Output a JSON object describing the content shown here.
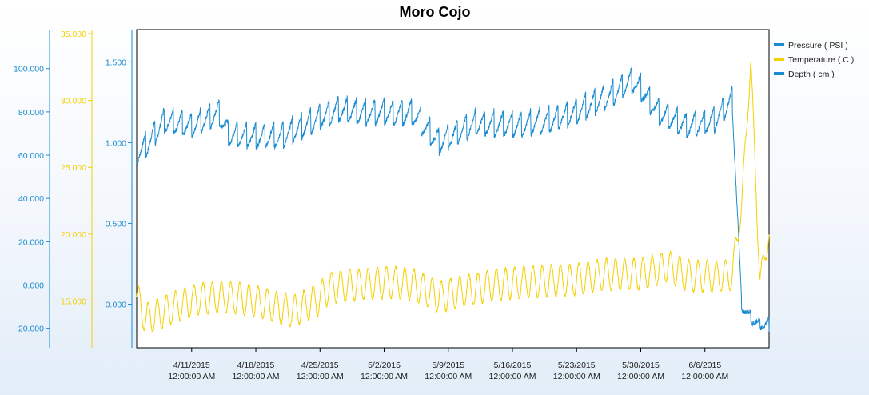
{
  "chart_data": {
    "type": "line",
    "title": "Moro Cojo",
    "x_axis": {
      "type": "date",
      "range": [
        "2015-04-05",
        "2015-06-13"
      ],
      "tick_labels": [
        {
          "date": "2015-04-11",
          "line1": "4/11/2015",
          "line2": "12:00:00 AM"
        },
        {
          "date": "2015-04-18",
          "line1": "4/18/2015",
          "line2": "12:00:00 AM"
        },
        {
          "date": "2015-04-25",
          "line1": "4/25/2015",
          "line2": "12:00:00 AM"
        },
        {
          "date": "2015-05-02",
          "line1": "5/2/2015",
          "line2": "12:00:00 AM"
        },
        {
          "date": "2015-05-09",
          "line1": "5/9/2015",
          "line2": "12:00:00 AM"
        },
        {
          "date": "2015-05-16",
          "line1": "5/16/2015",
          "line2": "12:00:00 AM"
        },
        {
          "date": "2015-05-23",
          "line1": "5/23/2015",
          "line2": "12:00:00 AM"
        },
        {
          "date": "2015-05-30",
          "line1": "5/30/2015",
          "line2": "12:00:00 AM"
        },
        {
          "date": "2015-06-06",
          "line1": "6/6/2015",
          "line2": "12:00:00 AM"
        }
      ]
    },
    "y_axes": [
      {
        "series": "Depth ( cm )",
        "color": "#1a8bd0",
        "ylim": [
          -29,
          118
        ],
        "ticks": [
          "-20.000",
          "0.000",
          "20.000",
          "40.000",
          "60.000",
          "80.000",
          "100.000"
        ],
        "tick_values": [
          -20,
          0,
          20,
          40,
          60,
          80,
          100
        ]
      },
      {
        "series": "Temperature ( C )",
        "color": "#f5d000",
        "ylim": [
          11.5,
          35.3
        ],
        "ticks": [
          "15.000",
          "20.000",
          "25.000",
          "30.000",
          "35.000"
        ],
        "tick_values": [
          15,
          20,
          25,
          30,
          35
        ]
      },
      {
        "series": "Pressure ( PSI )",
        "color": "#1a8bd0",
        "ylim": [
          -0.27,
          1.7
        ],
        "ticks": [
          "0.000",
          "0.500",
          "1.000",
          "1.500"
        ],
        "tick_values": [
          0,
          0.5,
          1,
          1.5
        ]
      }
    ],
    "series": [
      {
        "name": "Pressure ( PSI )",
        "color": "#1a8bd0",
        "axis": "Pressure ( PSI )",
        "points": [
          [
            "2015-04-05",
            0.96
          ],
          [
            "2015-04-06",
            1.0
          ],
          [
            "2015-04-08",
            1.15
          ],
          [
            "2015-04-11",
            1.12
          ],
          [
            "2015-04-14",
            1.2
          ],
          [
            "2015-04-15",
            1.07
          ],
          [
            "2015-04-18",
            1.05
          ],
          [
            "2015-04-21",
            1.06
          ],
          [
            "2015-04-25",
            1.17
          ],
          [
            "2015-04-27",
            1.22
          ],
          [
            "2015-04-30",
            1.2
          ],
          [
            "2015-05-02",
            1.2
          ],
          [
            "2015-05-05",
            1.2
          ],
          [
            "2015-05-08",
            1.02
          ],
          [
            "2015-05-09",
            1.05
          ],
          [
            "2015-05-12",
            1.14
          ],
          [
            "2015-05-16",
            1.12
          ],
          [
            "2015-05-20",
            1.15
          ],
          [
            "2015-05-23",
            1.21
          ],
          [
            "2015-05-27",
            1.32
          ],
          [
            "2015-05-29",
            1.4
          ],
          [
            "2015-05-30",
            1.35
          ],
          [
            "2015-06-01",
            1.2
          ],
          [
            "2015-06-04",
            1.12
          ],
          [
            "2015-06-07",
            1.15
          ],
          [
            "2015-06-09",
            1.28
          ],
          [
            "2015-06-10",
            0.0
          ],
          [
            "2015-06-11",
            -0.08
          ],
          [
            "2015-06-12",
            -0.12
          ],
          [
            "2015-06-13",
            -0.12
          ]
        ]
      },
      {
        "name": "Temperature ( C )",
        "color": "#f5d000",
        "axis": "Temperature ( C )",
        "points": [
          [
            "2015-04-05",
            15.3
          ],
          [
            "2015-04-06",
            13.6
          ],
          [
            "2015-04-09",
            14.5
          ],
          [
            "2015-04-12",
            15.2
          ],
          [
            "2015-04-15",
            15.3
          ],
          [
            "2015-04-18",
            15.0
          ],
          [
            "2015-04-22",
            14.2
          ],
          [
            "2015-04-25",
            15.2
          ],
          [
            "2015-04-26",
            16.0
          ],
          [
            "2015-04-29",
            16.2
          ],
          [
            "2015-05-02",
            16.4
          ],
          [
            "2015-05-05",
            16.3
          ],
          [
            "2015-05-08",
            15.3
          ],
          [
            "2015-05-11",
            15.8
          ],
          [
            "2015-05-14",
            16.2
          ],
          [
            "2015-05-17",
            16.4
          ],
          [
            "2015-05-20",
            16.5
          ],
          [
            "2015-05-23",
            16.6
          ],
          [
            "2015-05-26",
            17.0
          ],
          [
            "2015-05-30",
            17.0
          ],
          [
            "2015-06-02",
            17.6
          ],
          [
            "2015-06-04",
            16.9
          ],
          [
            "2015-06-07",
            16.8
          ],
          [
            "2015-06-09",
            17.0
          ],
          [
            "2015-06-10",
            22.0
          ],
          [
            "2015-06-11",
            33.0
          ],
          [
            "2015-06-12",
            16.5
          ],
          [
            "2015-06-13",
            20.0
          ]
        ]
      }
    ],
    "legend": {
      "placement": "right",
      "entries": [
        "Pressure ( PSI )",
        "Temperature ( C )",
        "Depth ( cm )"
      ]
    },
    "grid": false
  }
}
